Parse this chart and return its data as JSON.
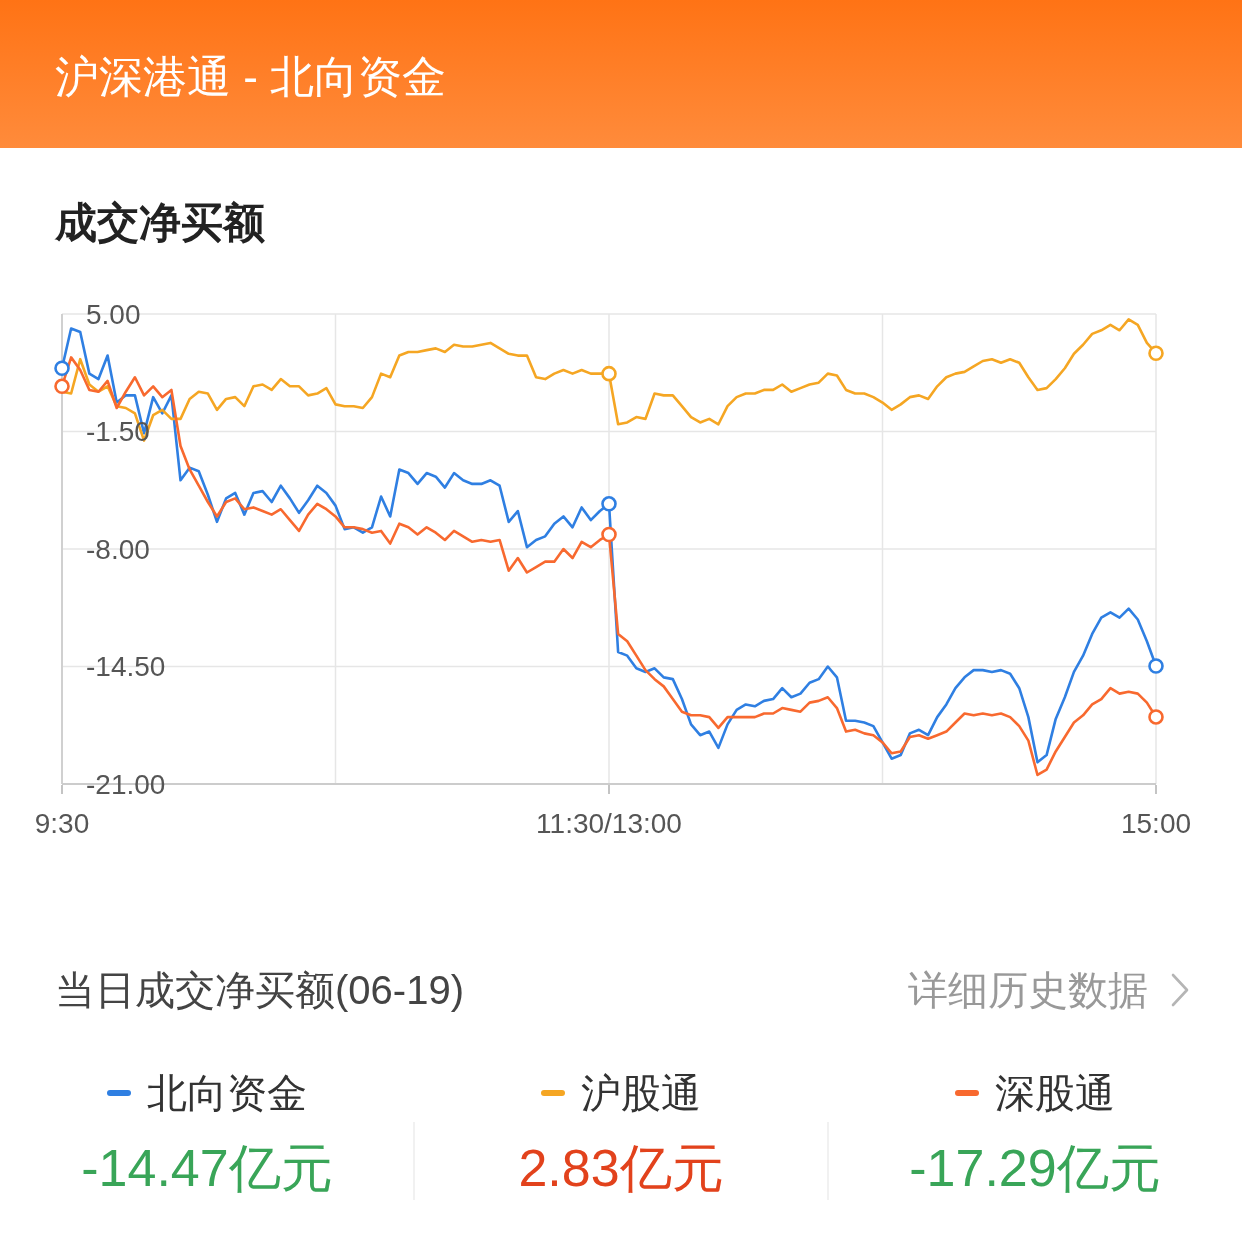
{
  "chart_data": {
    "type": "line",
    "title": "沪深港通 - 北向资金",
    "subtitle": "成交净买额",
    "categories": [
      "9:30",
      null,
      null,
      null,
      null,
      null,
      null,
      null,
      null,
      null,
      null,
      null,
      null,
      null,
      null,
      null,
      null,
      null,
      null,
      null,
      null,
      null,
      null,
      null,
      null,
      null,
      null,
      null,
      null,
      null,
      null,
      null,
      null,
      null,
      null,
      null,
      null,
      null,
      null,
      null,
      null,
      null,
      null,
      null,
      null,
      null,
      null,
      null,
      null,
      null,
      null,
      null,
      null,
      null,
      null,
      null,
      null,
      null,
      null,
      null,
      "11:30/13:00",
      null,
      null,
      null,
      null,
      null,
      null,
      null,
      null,
      null,
      null,
      null,
      null,
      null,
      null,
      null,
      null,
      null,
      null,
      null,
      null,
      null,
      null,
      null,
      null,
      null,
      null,
      null,
      null,
      null,
      null,
      null,
      null,
      null,
      null,
      null,
      null,
      null,
      null,
      null,
      null,
      null,
      null,
      null,
      null,
      null,
      null,
      null,
      null,
      null,
      null,
      null,
      null,
      null,
      null,
      null,
      null,
      null,
      null,
      null,
      "15:00"
    ],
    "ylim": [
      -21,
      5
    ],
    "yticks": [
      {
        "value": 5,
        "label": "5.00"
      },
      {
        "value": -1.5,
        "label": "-1.50"
      },
      {
        "value": -8,
        "label": "-8.00"
      },
      {
        "value": -14.5,
        "label": "-14.50"
      },
      {
        "value": -21,
        "label": "-21.00"
      }
    ],
    "grid": true,
    "legend": "bottom",
    "annotations": [
      "当日成交净买额(06-19)",
      "详细历史数据",
      "-14.47亿元",
      "2.83亿元",
      "-17.29亿元"
    ],
    "series": [
      {
        "name": "北向资金",
        "color": "#2f7fe2",
        "values": [
          2.0,
          4.2,
          4.0,
          1.7,
          1.4,
          2.7,
          0.1,
          0.5,
          0.5,
          -1.6,
          0.4,
          -0.5,
          0.5,
          -4.2,
          -3.5,
          -3.7,
          -5.0,
          -6.5,
          -5.2,
          -4.9,
          -6.1,
          -4.9,
          -4.8,
          -5.4,
          -4.5,
          -5.2,
          -6.0,
          -5.3,
          -4.5,
          -4.9,
          -5.6,
          -6.9,
          -6.8,
          -7.1,
          -6.8,
          -5.1,
          -6.2,
          -3.6,
          -3.8,
          -4.4,
          -3.8,
          -4.0,
          -4.6,
          -3.8,
          -4.2,
          -4.4,
          -4.4,
          -4.2,
          -4.5,
          -6.5,
          -5.9,
          -7.9,
          -7.5,
          -7.3,
          -6.6,
          -6.2,
          -6.8,
          -5.7,
          -6.4,
          -5.9,
          -5.5,
          -13.7,
          -13.9,
          -14.6,
          -14.8,
          -14.6,
          -15.1,
          -15.2,
          -16.3,
          -17.7,
          -18.3,
          -18.1,
          -19.0,
          -17.7,
          -16.9,
          -16.6,
          -16.7,
          -16.4,
          -16.3,
          -15.7,
          -16.2,
          -16.0,
          -15.4,
          -15.2,
          -14.5,
          -15.1,
          -17.5,
          -17.5,
          -17.6,
          -17.8,
          -18.7,
          -19.6,
          -19.4,
          -18.2,
          -18.0,
          -18.3,
          -17.3,
          -16.6,
          -15.7,
          -15.1,
          -14.7,
          -14.7,
          -14.8,
          -14.7,
          -14.9,
          -15.7,
          -17.3,
          -19.8,
          -19.4,
          -17.4,
          -16.2,
          -14.8,
          -13.9,
          -12.7,
          -11.8,
          -11.5,
          -11.8,
          -11.3,
          -11.9,
          -13.1,
          -14.47
        ]
      },
      {
        "name": "沪股通",
        "color": "#f5a623",
        "values": [
          0.7,
          0.6,
          2.5,
          1.1,
          0.7,
          1.0,
          -0.1,
          -0.2,
          -0.5,
          -2.0,
          -0.6,
          -0.3,
          -0.8,
          -0.8,
          0.3,
          0.7,
          0.6,
          -0.3,
          0.3,
          0.4,
          -0.1,
          1.0,
          1.1,
          0.8,
          1.4,
          1.0,
          1.0,
          0.5,
          0.6,
          0.9,
          0.0,
          -0.1,
          -0.1,
          -0.2,
          0.4,
          1.7,
          1.5,
          2.7,
          2.9,
          2.9,
          3.0,
          3.1,
          2.9,
          3.3,
          3.2,
          3.2,
          3.3,
          3.4,
          3.1,
          2.8,
          2.7,
          2.7,
          1.5,
          1.4,
          1.7,
          1.9,
          1.7,
          1.9,
          1.7,
          1.7,
          1.7,
          -1.1,
          -1.0,
          -0.7,
          -0.8,
          0.6,
          0.5,
          0.5,
          -0.1,
          -0.7,
          -1.0,
          -0.8,
          -1.1,
          -0.1,
          0.4,
          0.6,
          0.6,
          0.8,
          0.8,
          1.1,
          0.7,
          0.9,
          1.1,
          1.2,
          1.7,
          1.6,
          0.8,
          0.6,
          0.6,
          0.4,
          0.1,
          -0.3,
          0.0,
          0.4,
          0.5,
          0.3,
          1.0,
          1.5,
          1.7,
          1.8,
          2.1,
          2.4,
          2.5,
          2.3,
          2.5,
          2.3,
          1.5,
          0.8,
          0.9,
          1.4,
          2.0,
          2.8,
          3.3,
          3.9,
          4.1,
          4.4,
          4.1,
          4.7,
          4.4,
          3.4,
          2.83
        ]
      },
      {
        "name": "深股通",
        "color": "#f8692f",
        "values": [
          1.0,
          2.6,
          1.9,
          0.8,
          0.7,
          1.3,
          -0.2,
          0.7,
          1.5,
          0.5,
          1.0,
          0.4,
          0.8,
          -2.3,
          -3.6,
          -4.5,
          -5.4,
          -6.2,
          -5.4,
          -5.2,
          -5.8,
          -5.7,
          -5.9,
          -6.1,
          -5.8,
          -6.4,
          -7.0,
          -6.1,
          -5.5,
          -5.8,
          -6.2,
          -6.8,
          -6.8,
          -6.9,
          -7.1,
          -7.0,
          -7.7,
          -6.6,
          -6.8,
          -7.2,
          -6.8,
          -7.1,
          -7.5,
          -7.0,
          -7.3,
          -7.6,
          -7.5,
          -7.6,
          -7.5,
          -9.2,
          -8.5,
          -9.3,
          -9.0,
          -8.7,
          -8.7,
          -8.0,
          -8.5,
          -7.6,
          -7.9,
          -7.5,
          -7.2,
          -12.7,
          -13.1,
          -13.9,
          -14.7,
          -15.2,
          -15.6,
          -16.3,
          -17.0,
          -17.2,
          -17.2,
          -17.3,
          -17.9,
          -17.3,
          -17.3,
          -17.3,
          -17.3,
          -17.1,
          -17.1,
          -16.8,
          -16.9,
          -17.0,
          -16.5,
          -16.4,
          -16.2,
          -16.8,
          -18.1,
          -18.0,
          -18.2,
          -18.3,
          -18.7,
          -19.3,
          -19.2,
          -18.4,
          -18.3,
          -18.5,
          -18.3,
          -18.1,
          -17.6,
          -17.1,
          -17.2,
          -17.1,
          -17.2,
          -17.1,
          -17.3,
          -17.8,
          -18.6,
          -20.5,
          -20.2,
          -19.2,
          -18.4,
          -17.6,
          -17.2,
          -16.6,
          -16.3,
          -15.7,
          -16.0,
          -15.9,
          -16.0,
          -16.5,
          -17.29
        ]
      },
      {
        "type": "scatter",
        "marker": "circle",
        "color": "#2f7fe2",
        "values": [
          2.0,
          null,
          null,
          null,
          null,
          null,
          null,
          null,
          null,
          null,
          null,
          null,
          null,
          null,
          null,
          null,
          null,
          null,
          null,
          null,
          null,
          null,
          null,
          null,
          null,
          null,
          null,
          null,
          null,
          null,
          null,
          null,
          null,
          null,
          null,
          null,
          null,
          null,
          null,
          null,
          null,
          null,
          null,
          null,
          null,
          null,
          null,
          null,
          null,
          null,
          null,
          null,
          null,
          null,
          null,
          null,
          null,
          null,
          null,
          null,
          -5.5,
          null,
          null,
          null,
          null,
          null,
          null,
          null,
          null,
          null,
          null,
          null,
          null,
          null,
          null,
          null,
          null,
          null,
          null,
          null,
          null,
          null,
          null,
          null,
          null,
          null,
          null,
          null,
          null,
          null,
          null,
          null,
          null,
          null,
          null,
          null,
          null,
          null,
          null,
          null,
          null,
          null,
          null,
          null,
          null,
          null,
          null,
          null,
          null,
          null,
          null,
          null,
          null,
          null,
          null,
          null,
          null,
          null,
          null,
          null,
          -14.47
        ]
      },
      {
        "type": "scatter",
        "marker": "circle",
        "color": "#f5a623",
        "values": [
          null,
          null,
          null,
          null,
          null,
          null,
          null,
          null,
          null,
          null,
          null,
          null,
          null,
          null,
          null,
          null,
          null,
          null,
          null,
          null,
          null,
          null,
          null,
          null,
          null,
          null,
          null,
          null,
          null,
          null,
          null,
          null,
          null,
          null,
          null,
          null,
          null,
          null,
          null,
          null,
          null,
          null,
          null,
          null,
          null,
          null,
          null,
          null,
          null,
          null,
          null,
          null,
          null,
          null,
          null,
          null,
          null,
          null,
          null,
          null,
          1.7,
          null,
          null,
          null,
          null,
          null,
          null,
          null,
          null,
          null,
          null,
          null,
          null,
          null,
          null,
          null,
          null,
          null,
          null,
          null,
          null,
          null,
          null,
          null,
          null,
          null,
          null,
          null,
          null,
          null,
          null,
          null,
          null,
          null,
          null,
          null,
          null,
          null,
          null,
          null,
          null,
          null,
          null,
          null,
          null,
          null,
          null,
          null,
          null,
          null,
          null,
          null,
          null,
          null,
          null,
          null,
          null,
          null,
          null,
          null,
          2.83
        ]
      },
      {
        "type": "scatter",
        "marker": "circle",
        "color": "#f8692f",
        "values": [
          1.0,
          null,
          null,
          null,
          null,
          null,
          null,
          null,
          null,
          null,
          null,
          null,
          null,
          null,
          null,
          null,
          null,
          null,
          null,
          null,
          null,
          null,
          null,
          null,
          null,
          null,
          null,
          null,
          null,
          null,
          null,
          null,
          null,
          null,
          null,
          null,
          null,
          null,
          null,
          null,
          null,
          null,
          null,
          null,
          null,
          null,
          null,
          null,
          null,
          null,
          null,
          null,
          null,
          null,
          null,
          null,
          null,
          null,
          null,
          null,
          -7.2,
          null,
          null,
          null,
          null,
          null,
          null,
          null,
          null,
          null,
          null,
          null,
          null,
          null,
          null,
          null,
          null,
          null,
          null,
          null,
          null,
          null,
          null,
          null,
          null,
          null,
          null,
          null,
          null,
          null,
          null,
          null,
          null,
          null,
          null,
          null,
          null,
          null,
          null,
          null,
          null,
          null,
          null,
          null,
          null,
          null,
          null,
          null,
          null,
          null,
          null,
          null,
          null,
          null,
          null,
          null,
          null,
          null,
          null,
          null,
          -17.29
        ]
      }
    ]
  }
}
